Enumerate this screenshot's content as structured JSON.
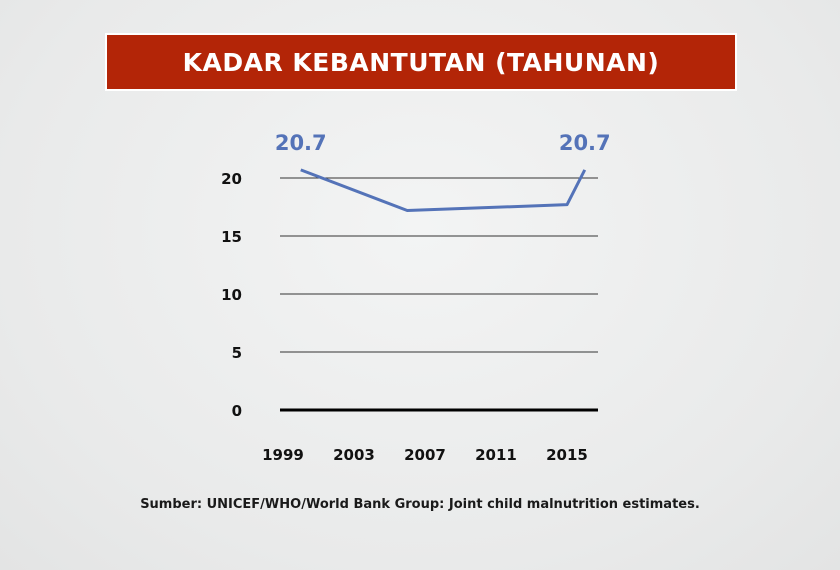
{
  "title": "KADAR KEBANTUTAN (TAHUNAN)",
  "source": "Sumber: UNICEF/WHO/World Bank Group: Joint child malnutrition estimates.",
  "colors": {
    "title_bg": "#b32507",
    "line": "#5473b8"
  },
  "chart_data": {
    "type": "line",
    "x": [
      2000,
      2006,
      2015,
      2016
    ],
    "series": [
      {
        "values": [
          20.7,
          17.2,
          17.7,
          20.7
        ]
      }
    ],
    "data_labels": [
      {
        "x": 2000,
        "y": 20.7,
        "text": "20.7"
      },
      {
        "x": 2016,
        "y": 20.7,
        "text": "20.7"
      }
    ],
    "x_ticks": [
      "1999",
      "2003",
      "2007",
      "2011",
      "2015"
    ],
    "y_ticks": [
      "0",
      "5",
      "10",
      "15",
      "20"
    ],
    "ylim": [
      0,
      20
    ],
    "xlabel": "",
    "ylabel": "",
    "grid": true
  }
}
